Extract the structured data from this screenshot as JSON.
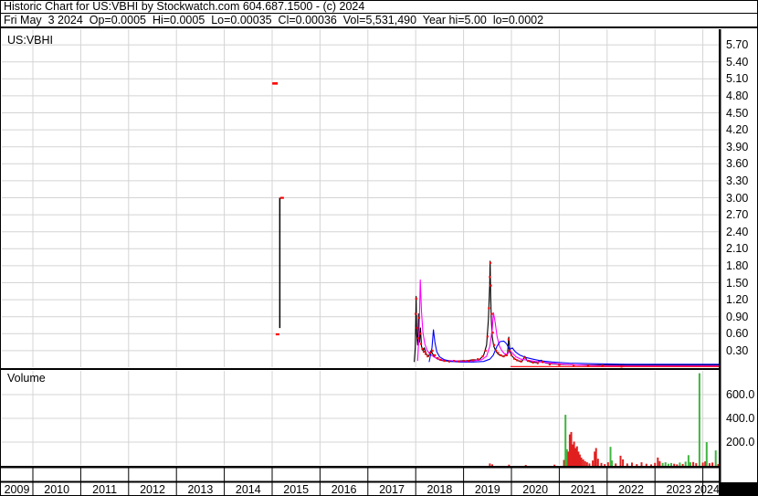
{
  "header": {
    "line1": "Historic Chart for US:VBHI by Stockwatch.com 604.687.1500 - (c) 2024",
    "line2": "Fri May  3 2024  Op=0.0005  Hi=0.0005  Lo=0.00035  Cl=0.00036  Vol=5,531,490  Year hi=5.00  lo=0.0002"
  },
  "price_panel": {
    "symbol_label": "US:VBHI"
  },
  "volume_panel": {
    "label": "Volume"
  },
  "colors": {
    "grid": "#d4d4d4",
    "border": "#000000",
    "price_line": "#000000",
    "ma_fast": "#ff00ff",
    "ma_slow": "#0000ff",
    "close_marks": "#ff0000",
    "volume_up": "#3fb53f",
    "volume_down": "#e01f1f"
  },
  "chart_data": {
    "type": "line",
    "title": "Historic Chart for US:VBHI",
    "x_axis": {
      "ticks": [
        "2009",
        "2010",
        "2011",
        "2012",
        "2013",
        "2014",
        "2015",
        "2016",
        "2017",
        "2018",
        "2019",
        "2020",
        "2021",
        "2022",
        "2023",
        "2024"
      ],
      "range_years": [
        2009.33,
        2024.35
      ]
    },
    "price_axis": {
      "ticks": [
        "5.70",
        "5.40",
        "5.10",
        "4.80",
        "4.50",
        "4.20",
        "3.90",
        "3.60",
        "3.30",
        "3.00",
        "2.70",
        "2.40",
        "2.10",
        "1.80",
        "1.50",
        "1.20",
        "0.90",
        "0.60",
        "0.30"
      ],
      "range": [
        0,
        5.85
      ],
      "grid": true,
      "position": "right"
    },
    "volume_axis": {
      "ticks": [
        "600.0",
        "400.0",
        "200.0"
      ],
      "range": [
        0,
        800
      ],
      "grid": true,
      "position": "right"
    },
    "series": [
      {
        "name": "price-daily",
        "color": "#000000",
        "points": [
          [
            2017.97,
            0.1
          ],
          [
            2017.99,
            0.35
          ],
          [
            2018.01,
            1.26
          ],
          [
            2018.02,
            0.6
          ],
          [
            2018.04,
            0.4
          ],
          [
            2018.06,
            0.95
          ],
          [
            2018.08,
            0.45
          ],
          [
            2018.1,
            0.7
          ],
          [
            2018.12,
            0.38
          ],
          [
            2018.15,
            0.3
          ],
          [
            2018.18,
            0.35
          ],
          [
            2018.22,
            0.24
          ],
          [
            2018.27,
            0.2
          ],
          [
            2018.32,
            0.3
          ],
          [
            2018.38,
            0.2
          ],
          [
            2018.44,
            0.16
          ],
          [
            2018.52,
            0.13
          ],
          [
            2018.62,
            0.12
          ],
          [
            2018.75,
            0.11
          ],
          [
            2018.9,
            0.12
          ],
          [
            2019.05,
            0.12
          ],
          [
            2019.2,
            0.14
          ],
          [
            2019.32,
            0.13
          ],
          [
            2019.42,
            0.22
          ],
          [
            2019.48,
            0.4
          ],
          [
            2019.52,
            0.85
          ],
          [
            2019.545,
            1.45
          ],
          [
            2019.555,
            1.88
          ],
          [
            2019.565,
            1.3
          ],
          [
            2019.58,
            0.85
          ],
          [
            2019.6,
            0.55
          ],
          [
            2019.63,
            0.38
          ],
          [
            2019.67,
            0.3
          ],
          [
            2019.71,
            0.25
          ],
          [
            2019.76,
            0.22
          ],
          [
            2019.82,
            0.2
          ],
          [
            2019.88,
            0.22
          ],
          [
            2019.92,
            0.25
          ],
          [
            2019.945,
            0.54
          ],
          [
            2019.97,
            0.28
          ],
          [
            2020.02,
            0.2
          ],
          [
            2020.08,
            0.15
          ],
          [
            2020.15,
            0.12
          ],
          [
            2020.22,
            0.11
          ],
          [
            2020.28,
            0.2
          ],
          [
            2020.33,
            0.12
          ],
          [
            2020.42,
            0.1
          ],
          [
            2020.52,
            0.09
          ],
          [
            2020.62,
            0.13
          ],
          [
            2020.72,
            0.08
          ],
          [
            2020.85,
            0.07
          ],
          [
            2021.0,
            0.06
          ],
          [
            2021.3,
            0.05
          ],
          [
            2021.7,
            0.045
          ],
          [
            2022.2,
            0.045
          ],
          [
            2022.8,
            0.045
          ],
          [
            2023.5,
            0.045
          ],
          [
            2024.35,
            0.045
          ]
        ]
      },
      {
        "name": "ma-fast",
        "color": "#ff00ff",
        "points": [
          [
            2018.04,
            0.12
          ],
          [
            2018.07,
            0.6
          ],
          [
            2018.095,
            1.55
          ],
          [
            2018.12,
            1.0
          ],
          [
            2018.15,
            0.62
          ],
          [
            2018.19,
            0.42
          ],
          [
            2018.24,
            0.3
          ],
          [
            2018.3,
            0.24
          ],
          [
            2018.38,
            0.19
          ],
          [
            2018.48,
            0.15
          ],
          [
            2018.6,
            0.13
          ],
          [
            2018.8,
            0.12
          ],
          [
            2019.0,
            0.11
          ],
          [
            2019.2,
            0.12
          ],
          [
            2019.38,
            0.14
          ],
          [
            2019.48,
            0.2
          ],
          [
            2019.55,
            0.38
          ],
          [
            2019.6,
            0.68
          ],
          [
            2019.625,
            0.97
          ],
          [
            2019.66,
            0.8
          ],
          [
            2019.7,
            0.55
          ],
          [
            2019.75,
            0.38
          ],
          [
            2019.8,
            0.3
          ],
          [
            2019.86,
            0.24
          ],
          [
            2019.92,
            0.24
          ],
          [
            2019.97,
            0.3
          ],
          [
            2020.02,
            0.26
          ],
          [
            2020.1,
            0.19
          ],
          [
            2020.2,
            0.15
          ],
          [
            2020.35,
            0.13
          ],
          [
            2020.5,
            0.11
          ],
          [
            2020.7,
            0.09
          ],
          [
            2020.95,
            0.07
          ],
          [
            2021.3,
            0.05
          ],
          [
            2021.8,
            0.035
          ],
          [
            2022.4,
            0.03
          ],
          [
            2023.2,
            0.03
          ],
          [
            2024.35,
            0.03
          ]
        ]
      },
      {
        "name": "ma-slow",
        "color": "#0000ff",
        "points": [
          [
            2018.28,
            0.1
          ],
          [
            2018.34,
            0.35
          ],
          [
            2018.37,
            0.67
          ],
          [
            2018.4,
            0.45
          ],
          [
            2018.44,
            0.28
          ],
          [
            2018.5,
            0.19
          ],
          [
            2018.6,
            0.14
          ],
          [
            2018.75,
            0.11
          ],
          [
            2018.95,
            0.1
          ],
          [
            2019.2,
            0.1
          ],
          [
            2019.42,
            0.11
          ],
          [
            2019.55,
            0.15
          ],
          [
            2019.62,
            0.22
          ],
          [
            2019.7,
            0.38
          ],
          [
            2019.76,
            0.46
          ],
          [
            2019.84,
            0.47
          ],
          [
            2019.9,
            0.42
          ],
          [
            2019.96,
            0.32
          ],
          [
            2020.02,
            0.35
          ],
          [
            2020.08,
            0.28
          ],
          [
            2020.18,
            0.22
          ],
          [
            2020.3,
            0.18
          ],
          [
            2020.45,
            0.15
          ],
          [
            2020.62,
            0.12
          ],
          [
            2020.85,
            0.1
          ],
          [
            2021.2,
            0.08
          ],
          [
            2021.7,
            0.07
          ],
          [
            2022.4,
            0.06
          ],
          [
            2023.2,
            0.06
          ],
          [
            2024.35,
            0.06
          ]
        ]
      },
      {
        "name": "close-tail",
        "color": "#ff0000",
        "points": [
          [
            2019.98,
            0.02
          ],
          [
            2024.35,
            0.02
          ]
        ]
      }
    ],
    "close_dots": {
      "color": "#ff0000",
      "points": [
        [
          2018.0,
          0.95
        ],
        [
          2018.01,
          1.22
        ],
        [
          2018.03,
          0.7
        ],
        [
          2018.05,
          0.52
        ],
        [
          2018.07,
          0.88
        ],
        [
          2018.09,
          0.6
        ],
        [
          2018.11,
          0.42
        ],
        [
          2018.14,
          0.33
        ],
        [
          2018.17,
          0.28
        ],
        [
          2018.21,
          0.24
        ],
        [
          2018.25,
          0.2
        ],
        [
          2018.3,
          0.26
        ],
        [
          2018.35,
          0.3
        ],
        [
          2018.4,
          0.22
        ],
        [
          2018.46,
          0.17
        ],
        [
          2018.52,
          0.14
        ],
        [
          2018.6,
          0.12
        ],
        [
          2018.7,
          0.11
        ],
        [
          2018.8,
          0.12
        ],
        [
          2018.9,
          0.11
        ],
        [
          2019.0,
          0.12
        ],
        [
          2019.1,
          0.12
        ],
        [
          2019.2,
          0.13
        ],
        [
          2019.3,
          0.15
        ],
        [
          2019.4,
          0.2
        ],
        [
          2019.46,
          0.3
        ],
        [
          2019.5,
          0.55
        ],
        [
          2019.53,
          1.05
        ],
        [
          2019.55,
          1.6
        ],
        [
          2019.56,
          1.85
        ],
        [
          2019.57,
          1.45
        ],
        [
          2019.59,
          0.95
        ],
        [
          2019.61,
          0.62
        ],
        [
          2019.64,
          0.4
        ],
        [
          2019.68,
          0.3
        ],
        [
          2019.72,
          0.26
        ],
        [
          2019.78,
          0.22
        ],
        [
          2019.84,
          0.2
        ],
        [
          2019.9,
          0.22
        ],
        [
          2019.94,
          0.5
        ],
        [
          2019.96,
          0.3
        ],
        [
          2020.0,
          0.22
        ],
        [
          2020.06,
          0.16
        ],
        [
          2020.12,
          0.13
        ],
        [
          2020.2,
          0.11
        ],
        [
          2020.28,
          0.18
        ],
        [
          2020.35,
          0.12
        ],
        [
          2020.45,
          0.09
        ],
        [
          2020.55,
          0.08
        ],
        [
          2020.65,
          0.1
        ],
        [
          2020.8,
          0.06
        ],
        [
          2021.0,
          0.05
        ],
        [
          2021.3,
          0.04
        ],
        [
          2021.6,
          0.03
        ],
        [
          2021.9,
          0.03
        ],
        [
          2022.3,
          0.02
        ]
      ]
    },
    "isolated_marks": {
      "bar_2015": {
        "x_year": 2015.16,
        "high": 3.0,
        "low": 0.7,
        "open_tick": 0.59,
        "close_tick": 3.0
      },
      "dash_2015": {
        "x_year": 2015.06,
        "price": 5.02
      }
    },
    "volume_bars": [
      [
        2019.55,
        20,
        "r"
      ],
      [
        2019.6,
        12,
        "r"
      ],
      [
        2019.95,
        10,
        "r"
      ],
      [
        2020.3,
        8,
        "r"
      ],
      [
        2020.9,
        10,
        "r"
      ],
      [
        2021.1,
        50,
        "r"
      ],
      [
        2021.13,
        430,
        "g"
      ],
      [
        2021.16,
        140,
        "g"
      ],
      [
        2021.19,
        120,
        "r"
      ],
      [
        2021.22,
        265,
        "r"
      ],
      [
        2021.25,
        285,
        "r"
      ],
      [
        2021.28,
        180,
        "r"
      ],
      [
        2021.31,
        205,
        "r"
      ],
      [
        2021.34,
        150,
        "r"
      ],
      [
        2021.37,
        165,
        "r"
      ],
      [
        2021.4,
        120,
        "r"
      ],
      [
        2021.43,
        95,
        "r"
      ],
      [
        2021.46,
        70,
        "r"
      ],
      [
        2021.5,
        55,
        "r"
      ],
      [
        2021.54,
        40,
        "r"
      ],
      [
        2021.58,
        30,
        "r"
      ],
      [
        2021.63,
        20,
        "r"
      ],
      [
        2021.7,
        45,
        "r"
      ],
      [
        2021.74,
        120,
        "r"
      ],
      [
        2021.77,
        150,
        "r"
      ],
      [
        2021.81,
        60,
        "r"
      ],
      [
        2021.88,
        25,
        "r"
      ],
      [
        2021.95,
        15,
        "r"
      ],
      [
        2022.02,
        30,
        "r"
      ],
      [
        2022.07,
        160,
        "g"
      ],
      [
        2022.1,
        45,
        "g"
      ],
      [
        2022.18,
        20,
        "r"
      ],
      [
        2022.28,
        85,
        "r"
      ],
      [
        2022.33,
        55,
        "r"
      ],
      [
        2022.42,
        20,
        "r"
      ],
      [
        2022.52,
        28,
        "r"
      ],
      [
        2022.62,
        15,
        "r"
      ],
      [
        2022.72,
        30,
        "r"
      ],
      [
        2022.82,
        18,
        "r"
      ],
      [
        2022.92,
        12,
        "r"
      ],
      [
        2023.0,
        25,
        "r"
      ],
      [
        2023.06,
        70,
        "r"
      ],
      [
        2023.1,
        40,
        "r"
      ],
      [
        2023.16,
        25,
        "g"
      ],
      [
        2023.22,
        30,
        "g"
      ],
      [
        2023.28,
        18,
        "g"
      ],
      [
        2023.34,
        24,
        "g"
      ],
      [
        2023.4,
        18,
        "r"
      ],
      [
        2023.46,
        12,
        "r"
      ],
      [
        2023.52,
        28,
        "g"
      ],
      [
        2023.58,
        16,
        "r"
      ],
      [
        2023.64,
        35,
        "g"
      ],
      [
        2023.7,
        90,
        "g"
      ],
      [
        2023.74,
        30,
        "g"
      ],
      [
        2023.8,
        32,
        "r"
      ],
      [
        2023.86,
        22,
        "r"
      ],
      [
        2023.93,
        780,
        "g"
      ],
      [
        2024.0,
        28,
        "r"
      ],
      [
        2024.05,
        38,
        "r"
      ],
      [
        2024.08,
        200,
        "g"
      ],
      [
        2024.14,
        22,
        "r"
      ],
      [
        2024.2,
        28,
        "r"
      ],
      [
        2024.27,
        130,
        "g"
      ],
      [
        2024.32,
        15,
        "r"
      ]
    ]
  }
}
